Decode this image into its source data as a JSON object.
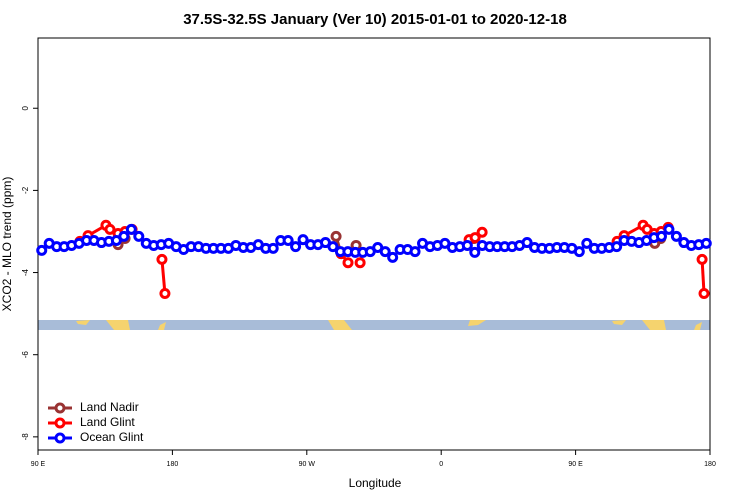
{
  "chart_data": {
    "type": "line",
    "title": "37.5S-32.5S January (Ver 10)   2015-01-01 to 2020-12-18",
    "x_label": "Longitude",
    "y_label": "XCO2 - MLO trend (ppm)",
    "xlim": [
      90,
      540
    ],
    "xticks": [
      {
        "value": 90,
        "label": "90 E"
      },
      180,
      {
        "value": 270,
        "label": "90 W"
      },
      {
        "value": 360,
        "label": "0"
      },
      {
        "value": 450,
        "label": "90 E"
      },
      {
        "value": 540,
        "label": "180"
      }
    ],
    "ylim": [
      -8.32,
      1.71
    ],
    "yticks": [
      0,
      -2,
      -4,
      -6,
      -8
    ],
    "legend": "bottom-left",
    "series": [
      {
        "name": "Land Nadir",
        "color": "#993333",
        "x": [
          143.6,
          148.3,
          null,
          289.6,
          293,
          null,
          303,
          null,
          382,
          null,
          503,
          507
        ],
        "values": [
          -3.32,
          -3.17,
          null,
          -3.12,
          -3.54,
          null,
          -3.34,
          null,
          -3.17,
          null,
          -3.29,
          -3.17
        ]
      },
      {
        "name": "Land Glint",
        "color": "#ff0000",
        "x": [
          118.1,
          123.5,
          135.5,
          138.2,
          143.6,
          148.3,
          153,
          null,
          173,
          175,
          null,
          293,
          297.6,
          null,
          305.7,
          null,
          378.7,
          382.7,
          387.4,
          null,
          477.8,
          482.5,
          495.2,
          497.9,
          502.6,
          507.3,
          512,
          null,
          534.7,
          536
        ],
        "values": [
          -3.24,
          -3.1,
          -2.85,
          -2.95,
          -3.05,
          -3.0,
          -2.95,
          null,
          -3.68,
          -4.51,
          null,
          -3.54,
          -3.76,
          null,
          -3.76,
          null,
          -3.2,
          -3.15,
          -3.02,
          null,
          -3.24,
          -3.1,
          -2.85,
          -2.95,
          -3.05,
          -3.0,
          -2.9,
          null,
          -3.68,
          -4.51
        ]
      },
      {
        "name": "Ocean Glint",
        "color": "#0000ff",
        "x": [
          92.5,
          97.5,
          102.5,
          107.5,
          112.5,
          117.5,
          122.5,
          127.5,
          132.5,
          137.5,
          142.5,
          147.5,
          152.5,
          157.5,
          162.5,
          167.5,
          172.5,
          177.5,
          182.5,
          187.5,
          192.5,
          197.5,
          202.5,
          207.5,
          212.5,
          217.5,
          222.5,
          227.5,
          232.5,
          237.5,
          242.5,
          247.5,
          252.5,
          257.5,
          262.5,
          267.5,
          272.5,
          277.5,
          282.5,
          287.5,
          292.5,
          297.5,
          302.5,
          307.5,
          312.5,
          317.5,
          322.5,
          327.5,
          332.5,
          337.5,
          342.5,
          347.5,
          352.5,
          357.5,
          362.5,
          367.5,
          372.5,
          377.5,
          382.5,
          387.5,
          392.5,
          397.5,
          402.5,
          407.5,
          412.5,
          417.5,
          422.5,
          427.5,
          432.5,
          437.5,
          442.5,
          447.5,
          452.5,
          457.5,
          462.5,
          467.5,
          472.5,
          477.5,
          482.5,
          487.5,
          492.5,
          497.5,
          502.5,
          507.5,
          512.5,
          517.5,
          522.5,
          527.5,
          532.5,
          537.5
        ],
        "values": [
          -3.46,
          -3.29,
          -3.37,
          -3.37,
          -3.34,
          -3.29,
          -3.22,
          -3.22,
          -3.27,
          -3.24,
          -3.22,
          -3.12,
          -2.95,
          -3.12,
          -3.29,
          -3.34,
          -3.32,
          -3.29,
          -3.37,
          -3.44,
          -3.37,
          -3.37,
          -3.41,
          -3.41,
          -3.41,
          -3.41,
          -3.34,
          -3.39,
          -3.39,
          -3.32,
          -3.41,
          -3.41,
          -3.22,
          -3.22,
          -3.37,
          -3.2,
          -3.32,
          -3.32,
          -3.27,
          -3.37,
          -3.49,
          -3.49,
          -3.51,
          -3.51,
          -3.49,
          -3.39,
          -3.49,
          -3.63,
          -3.44,
          -3.44,
          -3.49,
          -3.29,
          -3.37,
          -3.34,
          -3.29,
          -3.39,
          -3.37,
          -3.34,
          -3.51,
          -3.34,
          -3.37,
          -3.37,
          -3.37,
          -3.37,
          -3.34,
          -3.27,
          -3.39,
          -3.41,
          -3.41,
          -3.39,
          -3.39,
          -3.41,
          -3.49,
          -3.29,
          -3.41,
          -3.41,
          -3.39,
          -3.37,
          -3.22,
          -3.24,
          -3.27,
          -3.22,
          -3.15,
          -3.12,
          -2.95,
          -3.12,
          -3.27,
          -3.34,
          -3.32,
          -3.29
        ]
      }
    ]
  }
}
